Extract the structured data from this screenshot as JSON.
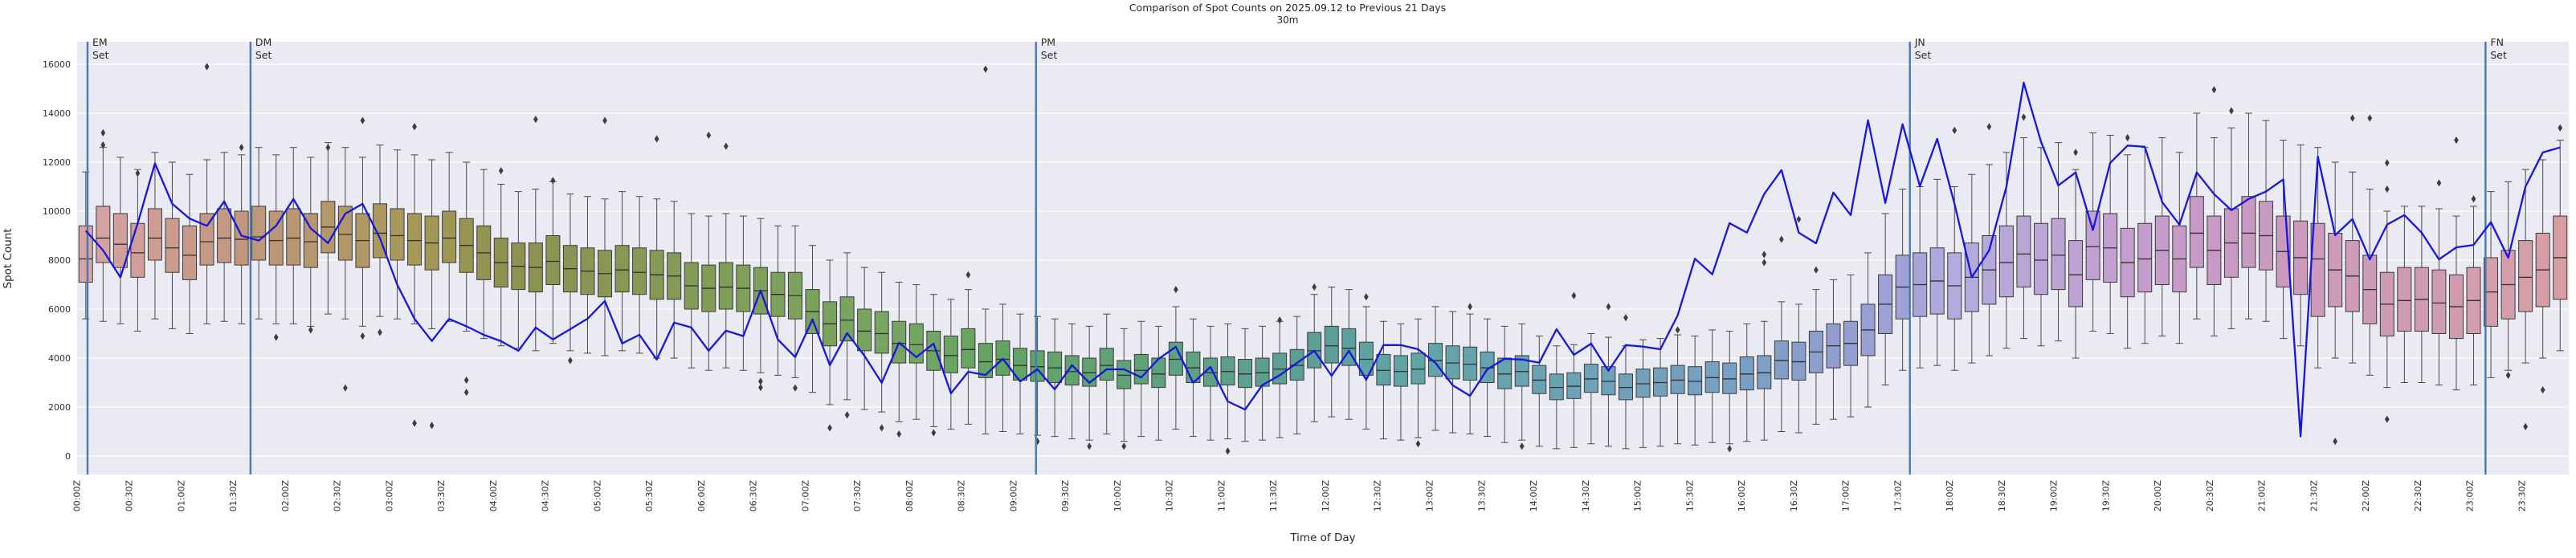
{
  "title": "Comparison of Spot Counts on 2025.09.12 to Previous 21 Days",
  "subtitle": "30m",
  "colors": {
    "figure_bg": "#ffffff",
    "plot_bg": "#eaeaf2",
    "grid": "#ffffff",
    "current_day_line": "#1616e0",
    "event_line": "#4c77b2",
    "box_edge": "#3b3b3b",
    "whisker": "#4a4a4a",
    "median": "#303030",
    "outlier": "#3d3d3d",
    "title_text": "#262626",
    "tick_text": "#303030"
  },
  "chart_data": {
    "type": "boxplot+line",
    "xlabel": "Time of Day",
    "ylabel": "Spot Count",
    "bin_minutes": 10,
    "xlim_minutes": [
      0,
      1437
    ],
    "ylim": [
      -754,
      16918
    ],
    "grid": "horizontal-only",
    "y_ticks": [
      0,
      2000,
      4000,
      6000,
      8000,
      10000,
      12000,
      14000,
      16000
    ],
    "x_tick_minutes_step": 30,
    "x_tick_labels": [
      "00:00Z",
      "00:30Z",
      "01:00Z",
      "01:30Z",
      "02:00Z",
      "02:30Z",
      "03:00Z",
      "03:30Z",
      "04:00Z",
      "04:30Z",
      "05:00Z",
      "05:30Z",
      "06:00Z",
      "06:30Z",
      "07:00Z",
      "07:30Z",
      "08:00Z",
      "08:30Z",
      "09:00Z",
      "09:30Z",
      "10:00Z",
      "10:30Z",
      "11:00Z",
      "11:30Z",
      "12:00Z",
      "12:30Z",
      "13:00Z",
      "13:30Z",
      "14:00Z",
      "14:30Z",
      "15:00Z",
      "15:30Z",
      "16:00Z",
      "16:30Z",
      "17:00Z",
      "17:30Z",
      "18:00Z",
      "18:30Z",
      "19:00Z",
      "19:30Z",
      "20:00Z",
      "20:30Z",
      "21:00Z",
      "21:30Z",
      "22:00Z",
      "22:30Z",
      "23:00Z",
      "23:30Z"
    ],
    "events": [
      {
        "code": "EM",
        "word": "Set",
        "minute": 6
      },
      {
        "code": "DM",
        "word": "Set",
        "minute": 100
      },
      {
        "code": "PM",
        "word": "Set",
        "minute": 553
      },
      {
        "code": "JN",
        "word": "Set",
        "minute": 1057
      },
      {
        "code": "FN",
        "word": "Set",
        "minute": 1389
      }
    ],
    "palette": {
      "hour_stops": [
        0,
        4,
        8,
        12,
        16,
        18,
        20.5,
        24
      ],
      "hue": [
        -3,
        62,
        104,
        176,
        209,
        247,
        304,
        357
      ],
      "sat": [
        38,
        29,
        27,
        26,
        38,
        42,
        29,
        40
      ],
      "light": [
        75,
        44,
        52,
        49,
        62,
        77,
        69,
        73
      ]
    },
    "box_median": [
      8050,
      8900,
      8650,
      8300,
      8900,
      8500,
      8200,
      8750,
      8900,
      8850,
      8950,
      8800,
      8900,
      8750,
      9350,
      9050,
      8800,
      9100,
      9000,
      8800,
      8700,
      8900,
      8600,
      8300,
      7900,
      7750,
      7700,
      7950,
      7650,
      7550,
      7450,
      7600,
      7500,
      7400,
      7350,
      6950,
      6850,
      6900,
      6850,
      6750,
      6600,
      6550,
      5900,
      5400,
      5550,
      5100,
      5000,
      4600,
      4550,
      4300,
      4100,
      4350,
      3850,
      3950,
      3700,
      3650,
      3600,
      3450,
      3400,
      3700,
      3300,
      3500,
      3350,
      3950,
      3600,
      3400,
      3450,
      3350,
      3400,
      3550,
      3700,
      4300,
      4500,
      4400,
      3950,
      3500,
      3450,
      3550,
      3900,
      3800,
      3750,
      3600,
      3350,
      3450,
      3100,
      2800,
      2850,
      3150,
      3050,
      2800,
      2950,
      3000,
      3100,
      3050,
      3200,
      3150,
      3350,
      3400,
      3900,
      3850,
      4250,
      4500,
      4600,
      5150,
      6200,
      6900,
      7000,
      7150,
      6950,
      7300,
      7600,
      7900,
      8250,
      8000,
      8200,
      7400,
      8550,
      8500,
      7900,
      8050,
      8400,
      8050,
      9100,
      8400,
      8700,
      9100,
      9000,
      8350,
      8100,
      8050,
      7600,
      7350,
      6800,
      6200,
      6350,
      6400,
      6250,
      6100,
      6350,
      6700,
      7000,
      7300,
      7600,
      8100
    ],
    "box_q1": [
      7100,
      7900,
      7700,
      7300,
      8000,
      7500,
      7200,
      7800,
      7900,
      7800,
      8000,
      7800,
      7800,
      7700,
      8300,
      8000,
      7700,
      8100,
      8000,
      7800,
      7600,
      7900,
      7500,
      7200,
      6900,
      6800,
      6700,
      7000,
      6700,
      6600,
      6500,
      6700,
      6600,
      6400,
      6400,
      6000,
      5900,
      6000,
      5900,
      5800,
      5700,
      5600,
      5000,
      4500,
      4700,
      4300,
      4200,
      3800,
      3800,
      3500,
      3400,
      3600,
      3200,
      3300,
      3100,
      3050,
      3000,
      2900,
      2850,
      3100,
      2750,
      2950,
      2800,
      3300,
      3000,
      2850,
      2900,
      2800,
      2850,
      2950,
      3100,
      3600,
      3800,
      3700,
      3300,
      2900,
      2850,
      2950,
      3250,
      3150,
      3100,
      3000,
      2750,
      2850,
      2550,
      2300,
      2350,
      2600,
      2500,
      2300,
      2400,
      2450,
      2550,
      2500,
      2600,
      2550,
      2700,
      2750,
      3150,
      3100,
      3400,
      3600,
      3700,
      4100,
      5000,
      5600,
      5700,
      5800,
      5600,
      5900,
      6200,
      6500,
      6900,
      6600,
      6800,
      6100,
      7200,
      7100,
      6500,
      6700,
      7000,
      6700,
      7700,
      7000,
      7300,
      7700,
      7600,
      6900,
      6600,
      5700,
      6100,
      5900,
      5400,
      4900,
      5100,
      5100,
      5000,
      4800,
      5000,
      5300,
      5600,
      5900,
      6100,
      6400
    ],
    "box_q3": [
      9400,
      10200,
      9900,
      9500,
      10100,
      9700,
      9400,
      9900,
      10100,
      10000,
      10200,
      10000,
      10100,
      9900,
      10400,
      10200,
      9900,
      10300,
      10100,
      9900,
      9800,
      10000,
      9700,
      9400,
      8900,
      8700,
      8700,
      9000,
      8600,
      8500,
      8400,
      8600,
      8500,
      8400,
      8300,
      7900,
      7800,
      7900,
      7800,
      7700,
      7500,
      7500,
      6800,
      6300,
      6500,
      6000,
      5900,
      5500,
      5400,
      5100,
      4900,
      5200,
      4600,
      4700,
      4400,
      4300,
      4250,
      4100,
      4000,
      4400,
      3900,
      4150,
      4000,
      4650,
      4250,
      4000,
      4050,
      3950,
      4000,
      4200,
      4350,
      5050,
      5300,
      5200,
      4650,
      4150,
      4100,
      4200,
      4600,
      4500,
      4450,
      4250,
      4000,
      4100,
      3700,
      3350,
      3400,
      3750,
      3650,
      3350,
      3550,
      3600,
      3700,
      3650,
      3850,
      3800,
      4050,
      4100,
      4700,
      4650,
      5100,
      5400,
      5500,
      6200,
      7400,
      8200,
      8300,
      8500,
      8300,
      8700,
      9000,
      9400,
      9800,
      9500,
      9700,
      8800,
      10000,
      9900,
      9300,
      9500,
      9800,
      9400,
      10600,
      9800,
      10100,
      10600,
      10400,
      9800,
      9600,
      9500,
      9100,
      8800,
      8200,
      7500,
      7700,
      7700,
      7600,
      7400,
      7700,
      8100,
      8400,
      8800,
      9100,
      9800
    ],
    "whisker_high": [
      11600,
      12600,
      12200,
      11700,
      12400,
      12000,
      11500,
      12100,
      12400,
      12300,
      12600,
      12300,
      12600,
      12200,
      12800,
      12600,
      12200,
      12700,
      12500,
      12300,
      12100,
      12400,
      12000,
      11700,
      11100,
      10800,
      10900,
      11200,
      10700,
      10600,
      10500,
      10800,
      10600,
      10500,
      10400,
      9900,
      9800,
      9900,
      9800,
      9700,
      9400,
      9400,
      8600,
      8000,
      8300,
      7700,
      7500,
      7100,
      7000,
      6600,
      6400,
      6800,
      6000,
      6200,
      5800,
      5700,
      5600,
      5400,
      5300,
      5800,
      5200,
      5500,
      5300,
      6100,
      5600,
      5300,
      5400,
      5200,
      5300,
      5500,
      5700,
      6600,
      6900,
      6800,
      6100,
      5500,
      5400,
      5600,
      6100,
      5900,
      5800,
      5600,
      5300,
      5400,
      4900,
      4500,
      4550,
      5000,
      4850,
      4500,
      4750,
      4800,
      4950,
      4900,
      5150,
      5100,
      5400,
      5500,
      6300,
      6200,
      6800,
      7200,
      7400,
      8300,
      9900,
      10900,
      11000,
      11300,
      11000,
      11500,
      11900,
      12400,
      13000,
      12600,
      12800,
      11700,
      13200,
      13100,
      12300,
      12600,
      13000,
      12400,
      14000,
      13000,
      13400,
      14000,
      13700,
      12900,
      12700,
      12600,
      12000,
      11600,
      10900,
      10000,
      10200,
      10200,
      10100,
      9800,
      10200,
      10800,
      11200,
      11700,
      12100,
      12900
    ],
    "whisker_low": [
      5600,
      5500,
      5400,
      5100,
      5600,
      5200,
      5000,
      5400,
      5500,
      5400,
      5600,
      5400,
      5400,
      5300,
      5800,
      5600,
      5300,
      5700,
      5600,
      5400,
      5200,
      5500,
      5100,
      4800,
      4500,
      4400,
      4300,
      4600,
      4300,
      4200,
      4100,
      4300,
      4200,
      4000,
      4000,
      3600,
      3500,
      3600,
      3500,
      3400,
      3300,
      3200,
      2600,
      2100,
      2300,
      1900,
      1800,
      1400,
      1500,
      1200,
      1100,
      1300,
      900,
      1000,
      900,
      850,
      800,
      700,
      650,
      900,
      600,
      800,
      650,
      1100,
      800,
      650,
      700,
      600,
      650,
      750,
      900,
      1400,
      1600,
      1500,
      1100,
      700,
      650,
      750,
      1050,
      950,
      900,
      800,
      550,
      650,
      400,
      300,
      350,
      500,
      400,
      300,
      350,
      400,
      500,
      450,
      550,
      500,
      600,
      650,
      1000,
      950,
      1300,
      1500,
      1600,
      2000,
      2900,
      3500,
      3600,
      3700,
      3500,
      3800,
      4100,
      4400,
      4800,
      4500,
      4700,
      4000,
      5100,
      5000,
      4400,
      4600,
      4900,
      4600,
      5600,
      4900,
      5200,
      5600,
      5500,
      4800,
      4500,
      3600,
      4000,
      3800,
      3300,
      2800,
      3000,
      3000,
      2900,
      2700,
      2900,
      3200,
      3500,
      3800,
      4000,
      4300
    ],
    "outliers": [
      [
        1,
        13200
      ],
      [
        1,
        12700
      ],
      [
        3,
        11550
      ],
      [
        7,
        15900
      ],
      [
        9,
        12600
      ],
      [
        11,
        4850
      ],
      [
        13,
        5150
      ],
      [
        14,
        12600
      ],
      [
        15,
        2780
      ],
      [
        16,
        13700
      ],
      [
        16,
        4900
      ],
      [
        17,
        5050
      ],
      [
        19,
        13450
      ],
      [
        19,
        1340
      ],
      [
        20,
        1250
      ],
      [
        22,
        3100
      ],
      [
        22,
        2600
      ],
      [
        24,
        11650
      ],
      [
        26,
        13750
      ],
      [
        27,
        11250
      ],
      [
        28,
        3900
      ],
      [
        30,
        13700
      ],
      [
        33,
        12950
      ],
      [
        36,
        13100
      ],
      [
        37,
        12650
      ],
      [
        39,
        3050
      ],
      [
        39,
        2800
      ],
      [
        41,
        2780
      ],
      [
        43,
        1150
      ],
      [
        44,
        1680
      ],
      [
        46,
        1150
      ],
      [
        47,
        900
      ],
      [
        49,
        950
      ],
      [
        51,
        7400
      ],
      [
        52,
        15800
      ],
      [
        55,
        600
      ],
      [
        58,
        400
      ],
      [
        60,
        400
      ],
      [
        63,
        6800
      ],
      [
        66,
        200
      ],
      [
        69,
        5550
      ],
      [
        71,
        6900
      ],
      [
        74,
        6500
      ],
      [
        77,
        500
      ],
      [
        80,
        6100
      ],
      [
        83,
        400
      ],
      [
        86,
        6550
      ],
      [
        88,
        6100
      ],
      [
        89,
        5650
      ],
      [
        92,
        5150
      ],
      [
        95,
        300
      ],
      [
        97,
        8230
      ],
      [
        97,
        7900
      ],
      [
        98,
        8850
      ],
      [
        99,
        9670
      ],
      [
        100,
        7600
      ],
      [
        108,
        13300
      ],
      [
        110,
        13450
      ],
      [
        112,
        13840
      ],
      [
        115,
        12400
      ],
      [
        118,
        13000
      ],
      [
        123,
        14960
      ],
      [
        124,
        14100
      ],
      [
        130,
        600
      ],
      [
        131,
        13800
      ],
      [
        132,
        13800
      ],
      [
        133,
        10900
      ],
      [
        133,
        11970
      ],
      [
        133,
        1500
      ],
      [
        136,
        11150
      ],
      [
        137,
        12900
      ],
      [
        138,
        10500
      ],
      [
        140,
        3300
      ],
      [
        141,
        1200
      ],
      [
        142,
        2700
      ],
      [
        143,
        13400
      ]
    ],
    "line_name": "2025.09.12",
    "line_values": [
      9200,
      8400,
      7300,
      9500,
      11950,
      10300,
      9700,
      9400,
      10400,
      9000,
      8800,
      9400,
      10500,
      9300,
      8700,
      9900,
      10300,
      8900,
      7000,
      5600,
      4700,
      5600,
      5300,
      4950,
      4690,
      4300,
      5250,
      4760,
      5180,
      5610,
      6330,
      4600,
      4950,
      3940,
      5450,
      5250,
      4300,
      5120,
      4900,
      6760,
      4760,
      4040,
      5580,
      3710,
      5020,
      4100,
      2990,
      4630,
      4040,
      4590,
      2560,
      3440,
      3310,
      3970,
      3050,
      3540,
      2720,
      3710,
      2990,
      3540,
      3540,
      3210,
      3970,
      4460,
      2990,
      3640,
      2230,
      1900,
      2900,
      3300,
      3800,
      4300,
      3280,
      4300,
      3110,
      4530,
      4530,
      4360,
      3810,
      2890,
      2460,
      3540,
      3970,
      3940,
      3810,
      5180,
      4130,
      4590,
      3480,
      4530,
      4470,
      4360,
      5740,
      8060,
      7420,
      9510,
      9120,
      10700,
      11680,
      9120,
      8690,
      10760,
      9840,
      13710,
      10330,
      13550,
      11020,
      12950,
      10300,
      7300,
      8400,
      11000,
      15250,
      12830,
      11050,
      11580,
      9230,
      11970,
      12680,
      12630,
      10370,
      9450,
      11580,
      10700,
      10040,
      10500,
      10800,
      11300,
      800,
      12230,
      9020,
      9680,
      8030,
      9450,
      9840,
      9120,
      8030,
      8520,
      8620,
      9550,
      8100,
      11000,
      12400,
      12600
    ]
  }
}
